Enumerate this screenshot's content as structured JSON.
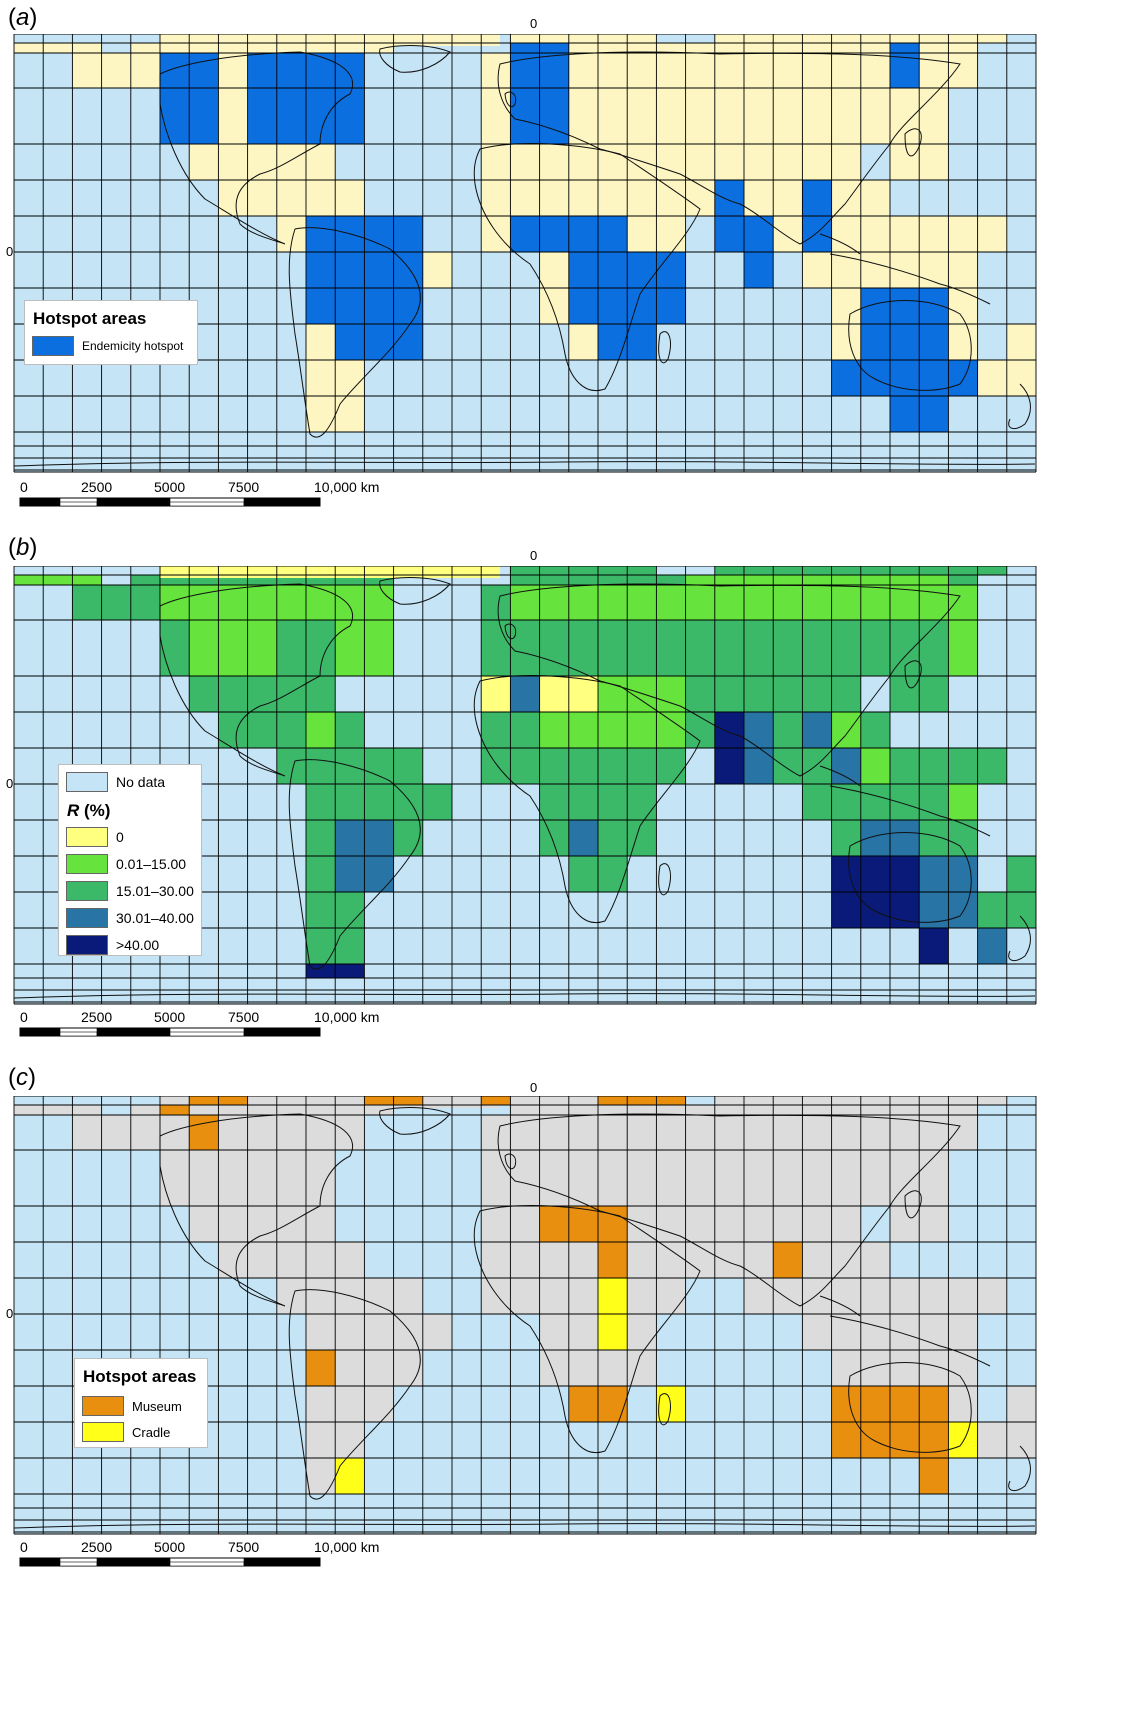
{
  "colors": {
    "ocean": "#c5e4f5",
    "land_a": "#fdf6c2",
    "hotspot_a": "#0b6fe0",
    "land_c": "#dcdcdc",
    "museum": "#e88f0f",
    "cradle": "#ffff1a",
    "r_zero": "#ffff80",
    "r_low": "#66e33c",
    "r_mid": "#3bb868",
    "r_high": "#2874a5",
    "r_max": "#0a1a78"
  },
  "panels": [
    {
      "id": "a",
      "label_open": "(",
      "label_letter": "a",
      "label_close": ")",
      "zero_top": "0",
      "zero_left": "0",
      "legend": {
        "title": "Hotspot areas",
        "items": [
          {
            "label": "Endemicity hotspot",
            "color": "#0b6fe0"
          }
        ]
      }
    },
    {
      "id": "b",
      "label_open": "(",
      "label_letter": "b",
      "label_close": ")",
      "zero_top": "0",
      "zero_left": "0",
      "legend": {
        "no_data_label": "No data",
        "title_main": "R",
        "title_unit": " (%)",
        "items": [
          {
            "label": "0",
            "color": "#ffff80"
          },
          {
            "label": "0.01–15.00",
            "color": "#66e33c"
          },
          {
            "label": "15.01–30.00",
            "color": "#3bb868"
          },
          {
            "label": "30.01–40.00",
            "color": "#2874a5"
          },
          {
            "label": ">40.00",
            "color": "#0a1a78"
          }
        ]
      }
    },
    {
      "id": "c",
      "label_open": "(",
      "label_letter": "c",
      "label_close": ")",
      "zero_top": "0",
      "zero_left": "0",
      "legend": {
        "title": "Hotspot areas",
        "items": [
          {
            "label": "Museum",
            "color": "#e88f0f"
          },
          {
            "label": "Cradle",
            "color": "#ffff1a"
          }
        ]
      }
    }
  ],
  "scale": {
    "ticks": [
      "0",
      "2500",
      "5000",
      "7500",
      "10,000 km"
    ]
  }
}
